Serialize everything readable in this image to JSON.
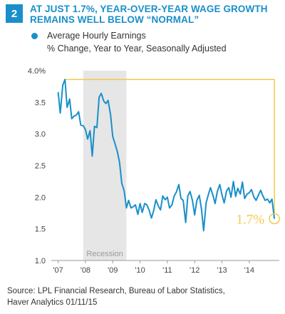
{
  "header": {
    "badge": "2",
    "title": "AT JUST 1.7%, YEAR-OVER-YEAR WAGE GROWTH\nREMAINS WELL BELOW “NORMAL”"
  },
  "legend": {
    "series_name": "Average Hourly Earnings",
    "subtitle": "% Change, Year to Year, Seasonally Adjusted"
  },
  "source": "Source: LPL Financial Research, Bureau of Labor Statistics,\nHaver Analytics  01/11/15",
  "colors": {
    "accent": "#1a8fc9",
    "highlight": "#f2c94c",
    "recession": "#e6e6e6"
  },
  "chart_data": {
    "type": "line",
    "y_ticks": [
      "4.0%",
      "3.5",
      "3.0",
      "2.5",
      "2.0",
      "1.5",
      "1.0"
    ],
    "y_tick_values": [
      4.0,
      3.5,
      3.0,
      2.5,
      2.0,
      1.5,
      1.0
    ],
    "ylim": [
      1.0,
      4.0
    ],
    "x_ticks": [
      "'07",
      "'08",
      "'09",
      "'10",
      "'11",
      "'12",
      "'13",
      "'14"
    ],
    "x_tick_values": [
      2007,
      2008,
      2009,
      2010,
      2011,
      2012,
      2013,
      2014
    ],
    "xlim": [
      2006.75,
      2015.1
    ],
    "recession": {
      "label": "Recession",
      "start": 2007.92,
      "end": 2009.5
    },
    "annotation": {
      "label": "1.7%",
      "x": 2014.92,
      "y": 1.66
    },
    "series": [
      {
        "name": "Average Hourly Earnings",
        "x": [
          2007.0,
          2007.08,
          2007.17,
          2007.25,
          2007.33,
          2007.42,
          2007.5,
          2007.58,
          2007.67,
          2007.75,
          2007.83,
          2007.92,
          2008.0,
          2008.08,
          2008.17,
          2008.25,
          2008.33,
          2008.42,
          2008.5,
          2008.58,
          2008.67,
          2008.75,
          2008.83,
          2008.92,
          2009.0,
          2009.08,
          2009.17,
          2009.25,
          2009.33,
          2009.42,
          2009.5,
          2009.58,
          2009.67,
          2009.75,
          2009.83,
          2009.92,
          2010.0,
          2010.08,
          2010.17,
          2010.25,
          2010.33,
          2010.42,
          2010.5,
          2010.58,
          2010.67,
          2010.75,
          2010.83,
          2010.92,
          2011.0,
          2011.08,
          2011.17,
          2011.25,
          2011.33,
          2011.42,
          2011.5,
          2011.58,
          2011.67,
          2011.75,
          2011.83,
          2011.92,
          2012.0,
          2012.08,
          2012.17,
          2012.25,
          2012.33,
          2012.42,
          2012.5,
          2012.58,
          2012.67,
          2012.75,
          2012.83,
          2012.92,
          2013.0,
          2013.08,
          2013.17,
          2013.25,
          2013.33,
          2013.42,
          2013.5,
          2013.58,
          2013.67,
          2013.75,
          2013.83,
          2013.92,
          2014.0,
          2014.08,
          2014.17,
          2014.25,
          2014.33,
          2014.42,
          2014.5,
          2014.58,
          2014.67,
          2014.75,
          2014.83,
          2014.92
        ],
        "y": [
          3.66,
          3.33,
          3.77,
          3.86,
          3.42,
          3.55,
          3.24,
          3.28,
          3.3,
          3.35,
          3.14,
          3.13,
          3.07,
          2.92,
          3.05,
          2.65,
          3.12,
          3.1,
          3.58,
          3.64,
          3.52,
          3.48,
          3.53,
          3.3,
          2.96,
          2.85,
          2.72,
          2.55,
          2.22,
          2.1,
          1.83,
          1.95,
          1.83,
          1.85,
          1.88,
          1.73,
          1.9,
          1.76,
          1.9,
          1.88,
          1.8,
          1.67,
          1.79,
          1.96,
          1.86,
          1.8,
          2.02,
          1.96,
          2.0,
          1.83,
          1.88,
          2.02,
          2.08,
          2.2,
          1.98,
          1.95,
          1.6,
          2.02,
          2.09,
          1.95,
          1.72,
          1.95,
          2.03,
          1.81,
          1.47,
          1.91,
          2.04,
          2.15,
          2.03,
          1.9,
          2.09,
          2.2,
          2.04,
          1.91,
          2.1,
          2.15,
          2.0,
          2.25,
          2.01,
          2.14,
          2.05,
          2.24,
          1.98,
          2.05,
          2.07,
          2.12,
          2.0,
          1.95,
          2.03,
          2.11,
          2.02,
          1.95,
          1.97,
          1.91,
          1.97,
          1.66
        ]
      }
    ]
  }
}
